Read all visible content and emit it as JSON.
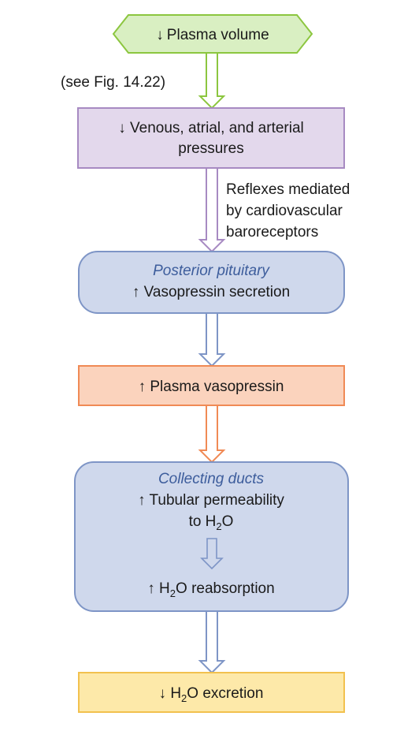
{
  "nodes": {
    "plasma_volume": {
      "arrow": "↓",
      "text": "Plasma volume"
    },
    "pressures": {
      "line1": "↓ Venous, atrial, and arterial",
      "line2": "pressures"
    },
    "posterior_pituitary": {
      "title": "Posterior pituitary",
      "line": "↑ Vasopressin secretion"
    },
    "plasma_vasopressin": {
      "text": "↑ Plasma vasopressin"
    },
    "collecting_ducts": {
      "title": "Collecting ducts",
      "line1": "↑ Tubular permeability",
      "line2_pre": "to H",
      "line2_sub": "2",
      "line2_post": "O",
      "line3_pre": "↑ H",
      "line3_sub": "2",
      "line3_post": "O reabsorption"
    },
    "h2o_excretion": {
      "pre": "↓ H",
      "sub": "2",
      "post": "O excretion"
    }
  },
  "annotations": {
    "see_fig": "(see Fig. 14.22)",
    "reflexes": {
      "line1": "Reflexes mediated",
      "line2": "by cardiovascular",
      "line3": "baroreceptors"
    }
  },
  "colors": {
    "green_fill": "#d9efc2",
    "green_stroke": "#8cc63f",
    "purple_fill": "#e3d8ec",
    "purple_stroke": "#a78ac2",
    "blue_fill": "#cfd8ec",
    "blue_stroke": "#7e95c6",
    "orange_fill": "#fbd3bd",
    "orange_stroke": "#f08a55",
    "yellow_fill": "#fde9a9",
    "yellow_stroke": "#f2c14e"
  }
}
